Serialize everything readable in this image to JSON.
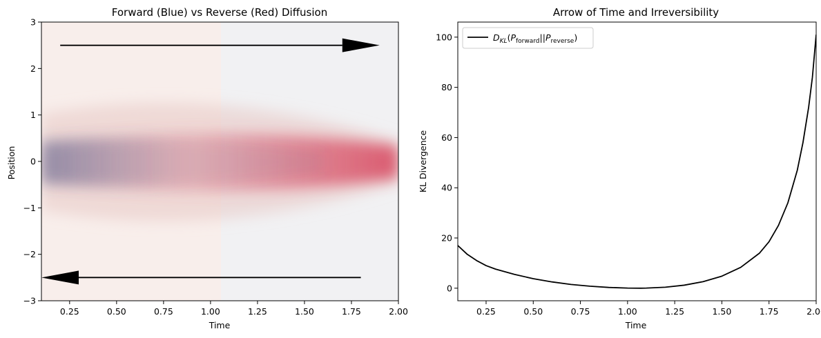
{
  "chart_data": [
    {
      "type": "heatmap",
      "title": "Forward (Blue) vs Reverse (Red) Diffusion",
      "xlabel": "Time",
      "ylabel": "Position",
      "xlim": [
        0.1,
        2.0
      ],
      "ylim": [
        -3,
        3
      ],
      "xticks": [
        "0.25",
        "0.50",
        "0.75",
        "1.00",
        "1.25",
        "1.50",
        "1.75",
        "2.00"
      ],
      "xtick_values": [
        0.25,
        0.5,
        0.75,
        1.0,
        1.25,
        1.5,
        1.75,
        2.0
      ],
      "yticks": [
        "−3",
        "−2",
        "−1",
        "0",
        "1",
        "2",
        "3"
      ],
      "ytick_values": [
        -3,
        -2,
        -1,
        0,
        1,
        2,
        3
      ],
      "colors": {
        "forward": "#4b5a8a",
        "reverse": "#d9546a",
        "arrow": "#000000"
      },
      "arrows": [
        {
          "direction": "forward",
          "from": [
            0.2,
            2.5
          ],
          "to": [
            1.9,
            2.5
          ]
        },
        {
          "direction": "reverse",
          "from": [
            1.8,
            -2.5
          ],
          "to": [
            0.1,
            -2.5
          ]
        }
      ],
      "grid": false
    },
    {
      "type": "line",
      "title": "Arrow of Time and Irreversibility",
      "xlabel": "Time",
      "ylabel": "KL Divergence",
      "xlim": [
        0.1,
        2.0
      ],
      "ylim": [
        -5,
        106
      ],
      "xticks": [
        "0.25",
        "0.50",
        "0.75",
        "1.00",
        "1.25",
        "1.50",
        "1.75",
        "2.00"
      ],
      "xtick_values": [
        0.25,
        0.5,
        0.75,
        1.0,
        1.25,
        1.5,
        1.75,
        2.0
      ],
      "yticks": [
        "0",
        "20",
        "40",
        "60",
        "80",
        "100"
      ],
      "ytick_values": [
        0,
        20,
        40,
        60,
        80,
        100
      ],
      "legend": {
        "placement": "upper-left",
        "entries": [
          "D_KL(P_forward||P_reverse)"
        ]
      },
      "grid": false,
      "series": [
        {
          "name": "D_KL(P_forward||P_reverse)",
          "color": "#000000",
          "x": [
            0.1,
            0.15,
            0.2,
            0.25,
            0.3,
            0.4,
            0.5,
            0.6,
            0.7,
            0.8,
            0.9,
            1.0,
            1.07,
            1.1,
            1.2,
            1.3,
            1.4,
            1.5,
            1.6,
            1.7,
            1.75,
            1.8,
            1.85,
            1.9,
            1.93,
            1.96,
            1.98,
            2.0
          ],
          "y": [
            17,
            13.5,
            11.0,
            9.0,
            7.6,
            5.5,
            3.8,
            2.5,
            1.5,
            0.8,
            0.3,
            0.05,
            0,
            0.05,
            0.4,
            1.2,
            2.6,
            4.8,
            8.3,
            14.0,
            18.5,
            25.0,
            34.0,
            47.0,
            58.0,
            72.0,
            84.0,
            101.0
          ]
        }
      ]
    }
  ]
}
